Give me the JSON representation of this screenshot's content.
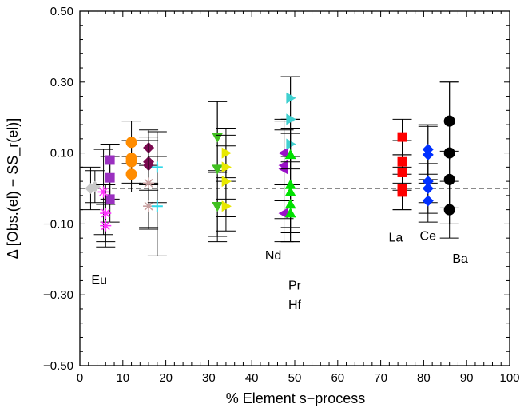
{
  "chart_data": {
    "type": "scatter",
    "title": "",
    "xlabel": "% Element s−process",
    "ylabel": "Δ [Obs.(el) − SS_r(el)]",
    "xlim": [
      0,
      100
    ],
    "ylim": [
      -0.5,
      0.5
    ],
    "xticks": [
      0,
      10,
      20,
      30,
      40,
      50,
      60,
      70,
      80,
      90,
      100
    ],
    "xtick_labels": [
      "0",
      "10",
      "20",
      "30",
      "40",
      "50",
      "60",
      "70",
      "80",
      "90",
      "100"
    ],
    "yticks": [
      -0.5,
      -0.3,
      -0.1,
      0.1,
      0.3,
      0.5
    ],
    "ytick_labels": [
      "−0.50",
      "−0.30",
      "−0.10",
      "0.10",
      "0.30",
      "0.50"
    ],
    "reference_line": {
      "y": 0.0,
      "style": "dashed"
    },
    "grid": false,
    "labels": [
      {
        "text": "Eu",
        "x": 4.5,
        "y": -0.27
      },
      {
        "text": "Nd",
        "x": 45,
        "y": -0.2
      },
      {
        "text": "Pr",
        "x": 50,
        "y": -0.285
      },
      {
        "text": "Hf",
        "x": 50,
        "y": -0.34
      },
      {
        "text": "La",
        "x": 73.5,
        "y": -0.15
      },
      {
        "text": "Ce",
        "x": 81,
        "y": -0.145
      },
      {
        "text": "Ba",
        "x": 88.5,
        "y": -0.21
      }
    ],
    "series": [
      {
        "color": "#c8c8c8",
        "marker": "diamond",
        "points": [
          {
            "x": 2.5,
            "y": 0.0,
            "err": 0.06
          },
          {
            "x": 3.5,
            "y": 0.005,
            "err": 0.045
          }
        ]
      },
      {
        "color": "#9a30c0",
        "marker": "square",
        "points": [
          {
            "x": 7.0,
            "y": 0.08,
            "err": 0.045
          },
          {
            "x": 7.0,
            "y": 0.03,
            "err": 0.06
          },
          {
            "x": 7.0,
            "y": -0.03,
            "err": 0.065
          }
        ]
      },
      {
        "color": "#ff30ff",
        "marker": "asterisk",
        "points": [
          {
            "x": 5.5,
            "y": -0.01,
            "err": 0.12
          },
          {
            "x": 6.0,
            "y": -0.07,
            "err": 0.08
          },
          {
            "x": 6.0,
            "y": -0.105,
            "err": 0.06
          }
        ]
      },
      {
        "color": "#ff8c00",
        "marker": "circle",
        "points": [
          {
            "x": 12.0,
            "y": 0.13,
            "err": 0.06
          },
          {
            "x": 12.0,
            "y": 0.085,
            "err": 0.05
          },
          {
            "x": 12.0,
            "y": 0.075,
            "err": 0.06
          },
          {
            "x": 12.0,
            "y": 0.04,
            "err": 0.05
          }
        ]
      },
      {
        "color": "#7a0a50",
        "marker": "diamond",
        "points": [
          {
            "x": 16.0,
            "y": 0.115,
            "err": 0.05
          },
          {
            "x": 16.0,
            "y": 0.075,
            "err": 0.06
          },
          {
            "x": 16.0,
            "y": 0.065,
            "err": 0.07
          }
        ]
      },
      {
        "color": "#c8a0a0",
        "marker": "asterisk",
        "points": [
          {
            "x": 16.0,
            "y": 0.015,
            "err": 0.13
          },
          {
            "x": 16.0,
            "y": -0.05,
            "err": 0.06
          }
        ]
      },
      {
        "color": "#30d8e8",
        "marker": "plus",
        "points": [
          {
            "x": 18.0,
            "y": 0.06,
            "err": 0.1
          },
          {
            "x": 18.0,
            "y": -0.05,
            "err": 0.14
          }
        ]
      },
      {
        "color": "#40c020",
        "marker": "triangle-down",
        "points": [
          {
            "x": 32.0,
            "y": 0.145,
            "err": 0.1
          },
          {
            "x": 32.0,
            "y": 0.055,
            "err": 0.19
          },
          {
            "x": 32.0,
            "y": -0.05,
            "err": 0.1
          }
        ]
      },
      {
        "color": "#e8e800",
        "marker": "triangle-right",
        "points": [
          {
            "x": 34.0,
            "y": 0.1,
            "err": 0.07
          },
          {
            "x": 34.0,
            "y": 0.06,
            "err": 0.09
          },
          {
            "x": 34.0,
            "y": 0.02,
            "err": 0.1
          },
          {
            "x": 34.0,
            "y": -0.05,
            "err": 0.07
          }
        ]
      },
      {
        "color": "#9a10c8",
        "marker": "triangle-left",
        "points": [
          {
            "x": 47.5,
            "y": 0.1,
            "err": 0.09
          },
          {
            "x": 47.5,
            "y": 0.065,
            "err": 0.1
          },
          {
            "x": 47.5,
            "y": 0.055,
            "err": 0.14
          },
          {
            "x": 47.5,
            "y": -0.07,
            "err": 0.08
          }
        ]
      },
      {
        "color": "#40d0d0",
        "marker": "triangle-right",
        "points": [
          {
            "x": 49.0,
            "y": 0.255,
            "err": 0.06
          },
          {
            "x": 49.0,
            "y": 0.195,
            "err": 0.12
          },
          {
            "x": 49.0,
            "y": 0.125,
            "err": 0.07
          }
        ]
      },
      {
        "color": "#00e000",
        "marker": "triangle-up",
        "points": [
          {
            "x": 49.0,
            "y": 0.095,
            "err": 0.06
          },
          {
            "x": 49.0,
            "y": 0.01,
            "err": 0.16
          },
          {
            "x": 49.0,
            "y": -0.01,
            "err": 0.1
          },
          {
            "x": 49.0,
            "y": -0.045,
            "err": 0.08
          },
          {
            "x": 49.0,
            "y": -0.07,
            "err": 0.08
          }
        ]
      },
      {
        "color": "#ff0000",
        "marker": "square",
        "points": [
          {
            "x": 75.0,
            "y": 0.145,
            "err": 0.05
          },
          {
            "x": 75.0,
            "y": 0.075,
            "err": 0.06
          },
          {
            "x": 75.0,
            "y": 0.045,
            "err": 0.05
          },
          {
            "x": 75.0,
            "y": 0.0,
            "err": 0.06
          },
          {
            "x": 75.0,
            "y": -0.01,
            "err": 0.05
          }
        ]
      },
      {
        "color": "#0030ff",
        "marker": "diamond",
        "points": [
          {
            "x": 81.0,
            "y": 0.11,
            "err": 0.07
          },
          {
            "x": 81.0,
            "y": 0.095,
            "err": 0.08
          },
          {
            "x": 81.0,
            "y": 0.02,
            "err": 0.06
          },
          {
            "x": 81.0,
            "y": 0.0,
            "err": 0.07
          },
          {
            "x": 81.0,
            "y": -0.035,
            "err": 0.06
          }
        ]
      },
      {
        "color": "#000000",
        "marker": "circle",
        "points": [
          {
            "x": 86.0,
            "y": 0.19,
            "err": 0.11
          },
          {
            "x": 86.0,
            "y": 0.1,
            "err": 0.2
          },
          {
            "x": 86.0,
            "y": 0.025,
            "err": 0.08
          },
          {
            "x": 86.0,
            "y": -0.06,
            "err": 0.08
          }
        ]
      }
    ]
  }
}
